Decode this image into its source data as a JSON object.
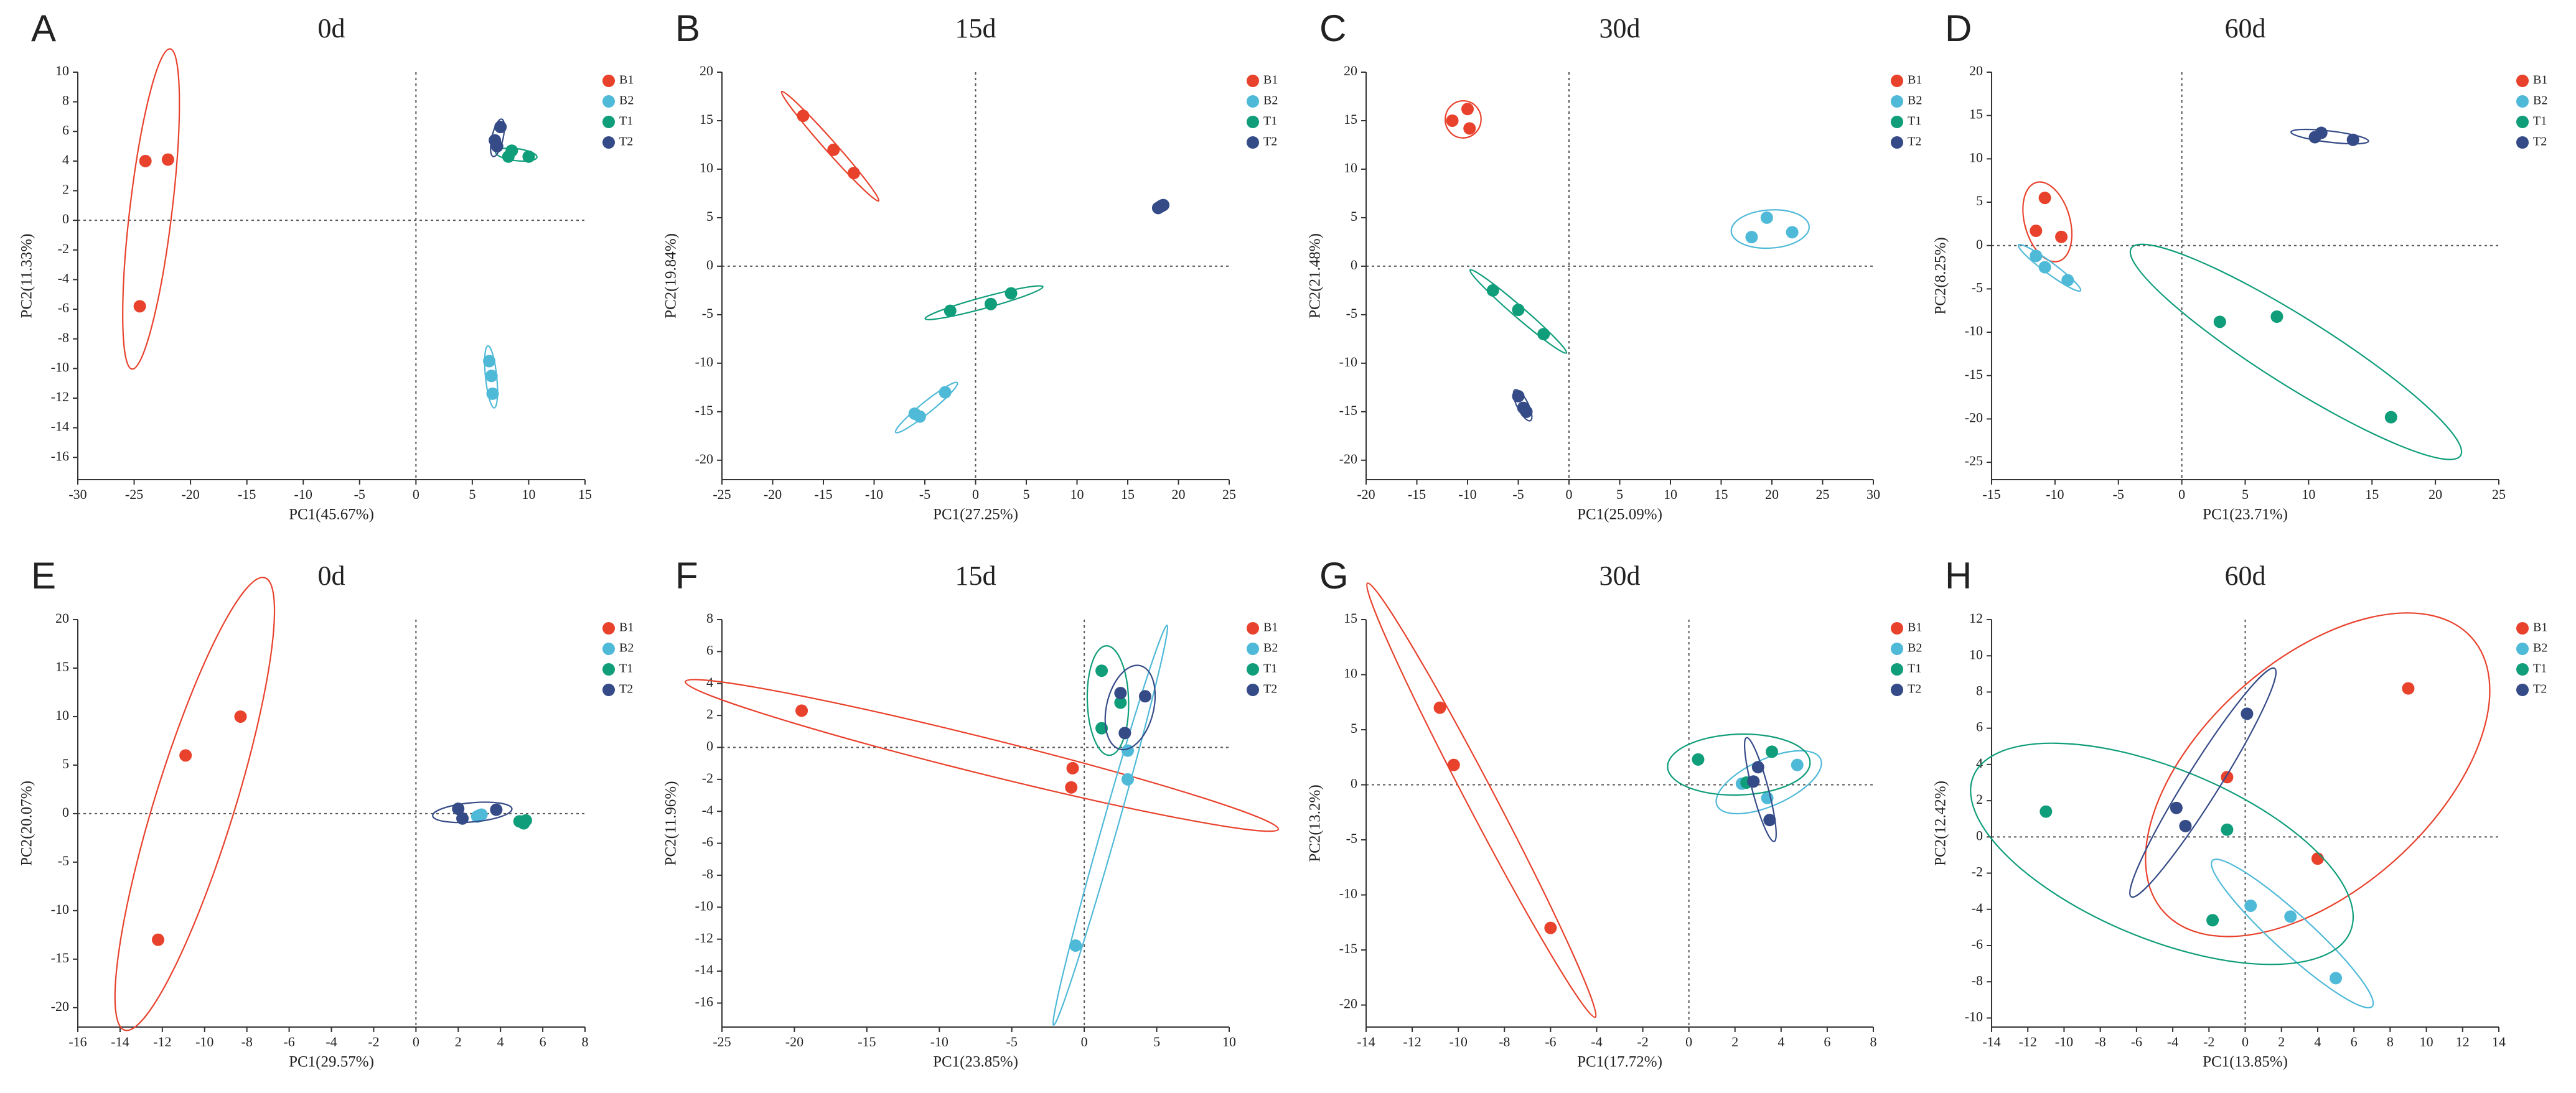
{
  "chart_data": [
    {
      "type": "scatter",
      "label": "A",
      "title": "0d",
      "xlabel": "PC1(45.67%)",
      "ylabel": "PC2(11.33%)",
      "ellipse": true,
      "xlim": [
        -30,
        15
      ],
      "xticks": [
        -30,
        -25,
        -20,
        -15,
        -10,
        -5,
        0,
        5,
        10,
        15
      ],
      "ylim": [
        -17.5,
        10
      ],
      "yticks": [
        -16,
        -14,
        -12,
        -10,
        -8,
        -6,
        -4,
        -2,
        0,
        2,
        4,
        6,
        8,
        10
      ],
      "series": [
        {
          "name": "B1",
          "color": "#e8412c",
          "x": [
            -24,
            -22,
            -24.5
          ],
          "y": [
            4,
            4.1,
            -5.8
          ]
        },
        {
          "name": "B2",
          "color": "#4fb9d8",
          "x": [
            6.5,
            6.7,
            6.8
          ],
          "y": [
            -9.5,
            -10.5,
            -11.7
          ]
        },
        {
          "name": "T1",
          "color": "#0f9d7a",
          "x": [
            8.5,
            8.2,
            10
          ],
          "y": [
            4.7,
            4.3,
            4.3
          ]
        },
        {
          "name": "T2",
          "color": "#354b87",
          "x": [
            7.5,
            7,
            7.2
          ],
          "y": [
            6.3,
            5.4,
            5
          ]
        }
      ]
    },
    {
      "type": "scatter",
      "label": "B",
      "title": "15d",
      "xlabel": "PC1(27.25%)",
      "ylabel": "PC2(19.84%)",
      "ellipse": true,
      "xlim": [
        -25,
        25
      ],
      "xticks": [
        -25,
        -20,
        -15,
        -10,
        -5,
        0,
        5,
        10,
        15,
        20,
        25
      ],
      "ylim": [
        -22,
        20
      ],
      "yticks": [
        -20,
        -15,
        -10,
        -5,
        0,
        5,
        10,
        15,
        20
      ],
      "series": [
        {
          "name": "B1",
          "color": "#e8412c",
          "x": [
            -17,
            -14,
            -12
          ],
          "y": [
            15.5,
            12,
            9.6
          ]
        },
        {
          "name": "B2",
          "color": "#4fb9d8",
          "x": [
            -6,
            -5.5,
            -3
          ],
          "y": [
            -15.2,
            -15.5,
            -13
          ]
        },
        {
          "name": "T1",
          "color": "#0f9d7a",
          "x": [
            -2.5,
            1.5,
            3.5
          ],
          "y": [
            -4.6,
            -3.9,
            -2.8
          ]
        },
        {
          "name": "T2",
          "color": "#354b87",
          "x": [
            18,
            18.3,
            18.5
          ],
          "y": [
            6,
            6.2,
            6.3
          ]
        }
      ]
    },
    {
      "type": "scatter",
      "label": "C",
      "title": "30d",
      "xlabel": "PC1(25.09%)",
      "ylabel": "PC2(21.48%)",
      "ellipse": true,
      "xlim": [
        -20,
        30
      ],
      "xticks": [
        -20,
        -15,
        -10,
        -5,
        0,
        5,
        10,
        15,
        20,
        25,
        30
      ],
      "ylim": [
        -22,
        20
      ],
      "yticks": [
        -20,
        -15,
        -10,
        -5,
        0,
        5,
        10,
        15,
        20
      ],
      "series": [
        {
          "name": "B1",
          "color": "#e8412c",
          "x": [
            -11.5,
            -10,
            -9.8
          ],
          "y": [
            15,
            16.2,
            14.2
          ]
        },
        {
          "name": "B2",
          "color": "#4fb9d8",
          "x": [
            18,
            19.5,
            22
          ],
          "y": [
            3,
            5,
            3.5
          ]
        },
        {
          "name": "T1",
          "color": "#0f9d7a",
          "x": [
            -7.5,
            -5,
            -2.5
          ],
          "y": [
            -2.5,
            -4.5,
            -7
          ]
        },
        {
          "name": "T2",
          "color": "#354b87",
          "x": [
            -5,
            -4.5,
            -4.2
          ],
          "y": [
            -13.4,
            -14.6,
            -15
          ]
        }
      ]
    },
    {
      "type": "scatter",
      "label": "D",
      "title": "60d",
      "xlabel": "PC1(23.71%)",
      "ylabel": "PC2(8.25%)",
      "ellipse": true,
      "xlim": [
        -15,
        25
      ],
      "xticks": [
        -15,
        -10,
        -5,
        0,
        5,
        10,
        15,
        20,
        25
      ],
      "ylim": [
        -27,
        20
      ],
      "yticks": [
        -25,
        -20,
        -15,
        -10,
        -5,
        0,
        5,
        10,
        15,
        20
      ],
      "series": [
        {
          "name": "B1",
          "color": "#e8412c",
          "x": [
            -11.5,
            -10.8,
            -9.5
          ],
          "y": [
            1.7,
            5.5,
            1
          ]
        },
        {
          "name": "B2",
          "color": "#4fb9d8",
          "x": [
            -11.5,
            -10.8,
            -9
          ],
          "y": [
            -1.2,
            -2.5,
            -4
          ]
        },
        {
          "name": "T1",
          "color": "#0f9d7a",
          "x": [
            3,
            7.5,
            16.5
          ],
          "y": [
            -8.8,
            -8.2,
            -19.8
          ]
        },
        {
          "name": "T2",
          "color": "#354b87",
          "x": [
            10.5,
            11,
            13.5
          ],
          "y": [
            12.5,
            13,
            12.2
          ]
        }
      ]
    },
    {
      "type": "scatter",
      "label": "E",
      "title": "0d",
      "xlabel": "PC1(29.57%)",
      "ylabel": "PC2(20.07%)",
      "ellipse": true,
      "xlim": [
        -16,
        8
      ],
      "xticks": [
        -16,
        -14,
        -12,
        -10,
        -8,
        -6,
        -4,
        -2,
        0,
        2,
        4,
        6,
        8
      ],
      "ylim": [
        -22,
        20
      ],
      "yticks": [
        -20,
        -15,
        -10,
        -5,
        0,
        5,
        10,
        15,
        20
      ],
      "series": [
        {
          "name": "B1",
          "color": "#e8412c",
          "x": [
            -12.2,
            -10.9,
            -8.3
          ],
          "y": [
            -13,
            6,
            10
          ]
        },
        {
          "name": "B2",
          "color": "#4fb9d8",
          "x": [
            3,
            2.9,
            3.1
          ],
          "y": [
            -0.2,
            -0.3,
            -0.1
          ]
        },
        {
          "name": "T1",
          "color": "#0f9d7a",
          "x": [
            4.9,
            5.1,
            5.2
          ],
          "y": [
            -0.8,
            -1,
            -0.7
          ]
        },
        {
          "name": "T2",
          "color": "#354b87",
          "x": [
            2,
            2.2,
            3.8
          ],
          "y": [
            0.5,
            -0.5,
            0.4
          ]
        }
      ]
    },
    {
      "type": "scatter",
      "label": "F",
      "title": "15d",
      "xlabel": "PC1(23.85%)",
      "ylabel": "PC2(11.96%)",
      "ellipse": true,
      "xlim": [
        -25,
        10
      ],
      "xticks": [
        -25,
        -20,
        -15,
        -10,
        -5,
        0,
        5,
        10
      ],
      "ylim": [
        -17.5,
        8
      ],
      "yticks": [
        -16,
        -14,
        -12,
        -10,
        -8,
        -6,
        -4,
        -2,
        0,
        2,
        4,
        6,
        8
      ],
      "series": [
        {
          "name": "B1",
          "color": "#e8412c",
          "x": [
            -19.5,
            -0.8,
            -0.9
          ],
          "y": [
            2.3,
            -1.3,
            -2.5
          ]
        },
        {
          "name": "B2",
          "color": "#4fb9d8",
          "x": [
            3,
            3,
            -0.6
          ],
          "y": [
            -0.2,
            -2,
            -12.4
          ]
        },
        {
          "name": "T1",
          "color": "#0f9d7a",
          "x": [
            1.2,
            1.2,
            2.5
          ],
          "y": [
            4.8,
            1.2,
            2.8
          ]
        },
        {
          "name": "T2",
          "color": "#354b87",
          "x": [
            2.5,
            2.8,
            4.2
          ],
          "y": [
            3.4,
            0.9,
            3.2
          ]
        }
      ]
    },
    {
      "type": "scatter",
      "label": "G",
      "title": "30d",
      "xlabel": "PC1(17.72%)",
      "ylabel": "PC2(13.2%)",
      "ellipse": true,
      "xlim": [
        -14,
        8
      ],
      "xticks": [
        -14,
        -12,
        -10,
        -8,
        -6,
        -4,
        -2,
        0,
        2,
        4,
        6,
        8
      ],
      "ylim": [
        -22,
        15
      ],
      "yticks": [
        -20,
        -15,
        -10,
        -5,
        0,
        5,
        10,
        15
      ],
      "series": [
        {
          "name": "B1",
          "color": "#e8412c",
          "x": [
            -10.8,
            -10.2,
            -6
          ],
          "y": [
            7,
            1.8,
            -13
          ]
        },
        {
          "name": "B2",
          "color": "#4fb9d8",
          "x": [
            4.7,
            3.4,
            2.3
          ],
          "y": [
            1.8,
            -1.2,
            0.1
          ]
        },
        {
          "name": "T1",
          "color": "#0f9d7a",
          "x": [
            0.4,
            3.6,
            2.5
          ],
          "y": [
            2.3,
            3,
            0.2
          ]
        },
        {
          "name": "T2",
          "color": "#354b87",
          "x": [
            3,
            2.8,
            3.5
          ],
          "y": [
            1.6,
            0.3,
            -3.2
          ]
        }
      ]
    },
    {
      "type": "scatter",
      "label": "H",
      "title": "60d",
      "xlabel": "PC1(13.85%)",
      "ylabel": "PC2(12.42%)",
      "ellipse": true,
      "xlim": [
        -14,
        14
      ],
      "xticks": [
        -14,
        -12,
        -10,
        -8,
        -6,
        -4,
        -2,
        0,
        2,
        4,
        6,
        8,
        10,
        12,
        14
      ],
      "ylim": [
        -10.5,
        12
      ],
      "yticks": [
        -10,
        -8,
        -6,
        -4,
        -2,
        0,
        2,
        4,
        6,
        8,
        10,
        12
      ],
      "series": [
        {
          "name": "B1",
          "color": "#e8412c",
          "x": [
            -1,
            4,
            9
          ],
          "y": [
            3.3,
            -1.2,
            8.2
          ]
        },
        {
          "name": "B2",
          "color": "#4fb9d8",
          "x": [
            0.3,
            2.5,
            5
          ],
          "y": [
            -3.8,
            -4.4,
            -7.8
          ]
        },
        {
          "name": "T1",
          "color": "#0f9d7a",
          "x": [
            -11,
            -1.8,
            -1
          ],
          "y": [
            1.4,
            -4.6,
            0.4
          ]
        },
        {
          "name": "T2",
          "color": "#354b87",
          "x": [
            -3.8,
            -3.3,
            0.1
          ],
          "y": [
            1.6,
            0.6,
            6.8
          ]
        }
      ]
    }
  ]
}
